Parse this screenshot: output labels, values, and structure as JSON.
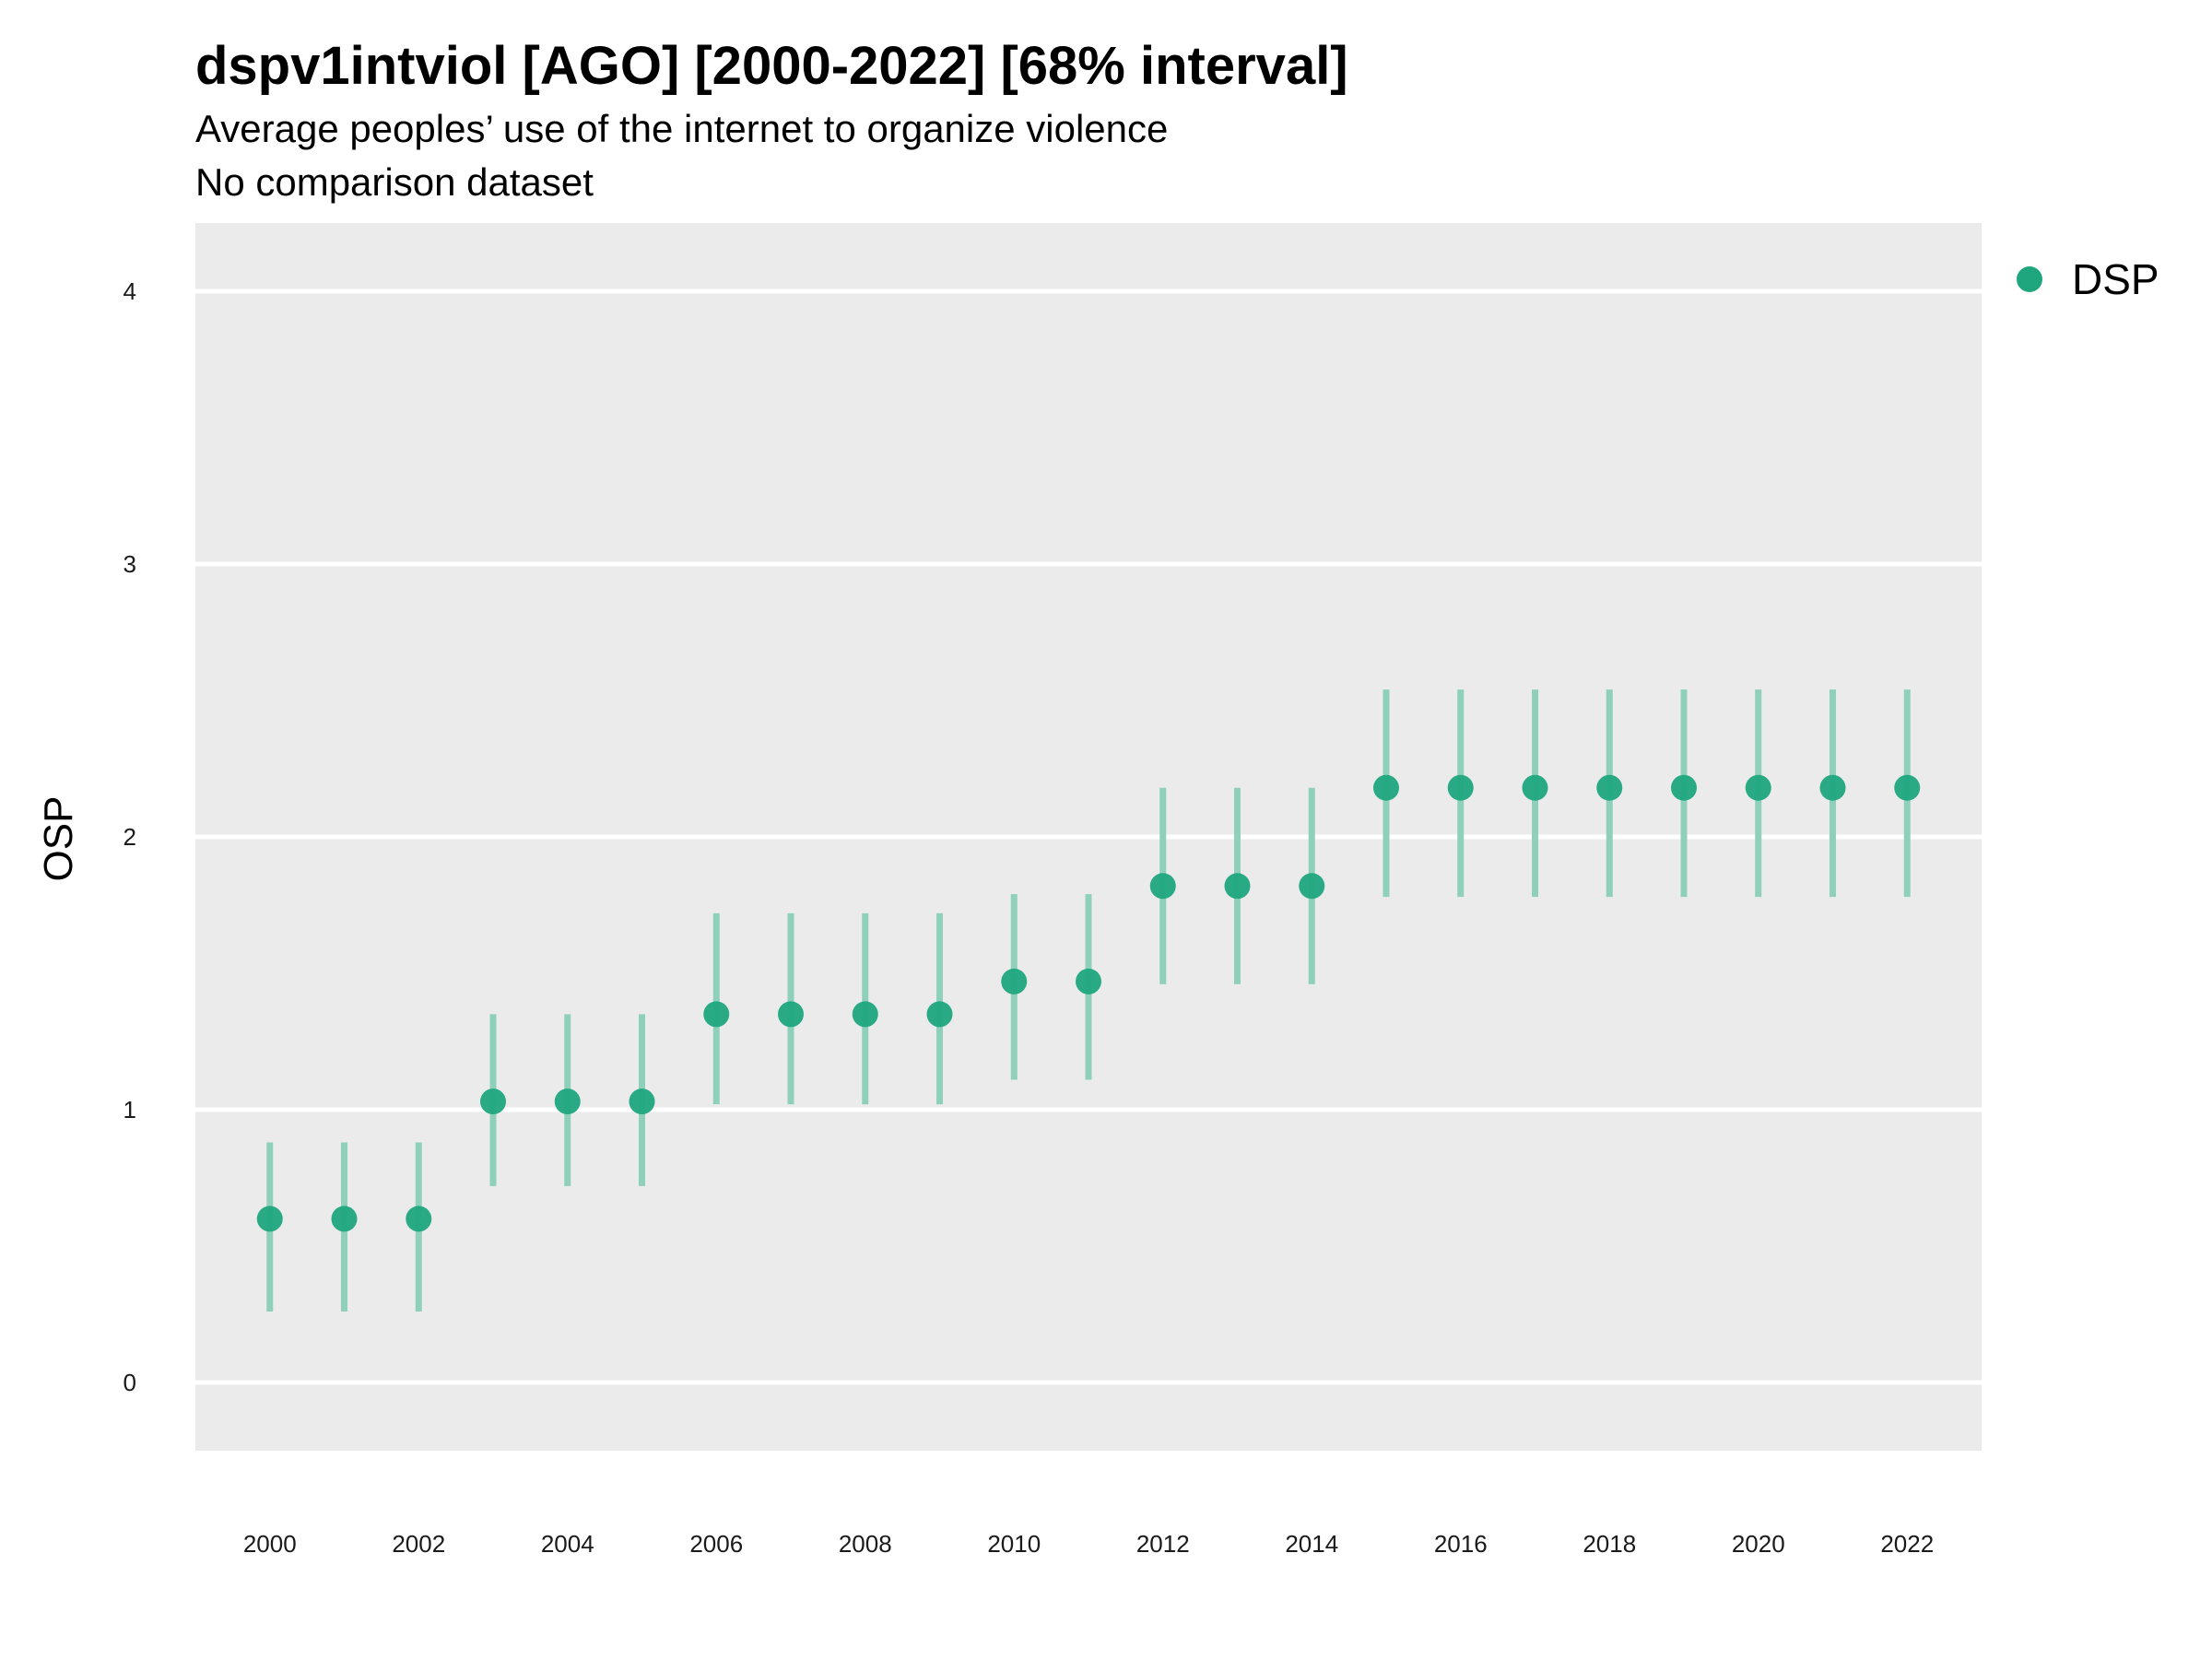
{
  "chart_data": {
    "type": "scatter",
    "title": "dspv1intviol [AGO] [2000-2022] [68% interval]",
    "subtitle": "Average peoples’ use of the internet to organize violence",
    "caption": "No comparison dataset",
    "ylabel": "OSP",
    "xlabel": "",
    "ylim": [
      -0.25,
      4.25
    ],
    "xlim": [
      1999,
      2023
    ],
    "y_ticks": [
      0,
      1,
      2,
      3,
      4
    ],
    "x_ticks": [
      2000,
      2002,
      2004,
      2006,
      2008,
      2010,
      2012,
      2014,
      2016,
      2018,
      2020,
      2022
    ],
    "grid": true,
    "legend": {
      "position": "right-top",
      "entries": [
        "DSP"
      ]
    },
    "series": [
      {
        "name": "DSP",
        "color": "#1fa67f",
        "x": [
          2000,
          2001,
          2002,
          2003,
          2004,
          2005,
          2006,
          2007,
          2008,
          2009,
          2010,
          2011,
          2012,
          2013,
          2014,
          2015,
          2016,
          2017,
          2018,
          2019,
          2020,
          2021,
          2022
        ],
        "y": [
          0.6,
          0.6,
          0.6,
          1.03,
          1.03,
          1.03,
          1.35,
          1.35,
          1.35,
          1.35,
          1.47,
          1.47,
          1.82,
          1.82,
          1.82,
          2.18,
          2.18,
          2.18,
          2.18,
          2.18,
          2.18,
          2.18,
          2.18
        ],
        "lower": [
          0.26,
          0.26,
          0.26,
          0.72,
          0.72,
          0.72,
          1.02,
          1.02,
          1.02,
          1.02,
          1.11,
          1.11,
          1.46,
          1.46,
          1.46,
          1.78,
          1.78,
          1.78,
          1.78,
          1.78,
          1.78,
          1.78,
          1.78
        ],
        "upper": [
          0.88,
          0.88,
          0.88,
          1.35,
          1.35,
          1.35,
          1.72,
          1.72,
          1.72,
          1.72,
          1.79,
          1.79,
          2.18,
          2.18,
          2.18,
          2.54,
          2.54,
          2.54,
          2.54,
          2.54,
          2.54,
          2.54,
          2.54
        ]
      }
    ]
  },
  "colors": {
    "panel_background": "#ebebeb",
    "gridline": "#ffffff",
    "point": "#1fa67f",
    "interval": "#8fd0bb"
  }
}
